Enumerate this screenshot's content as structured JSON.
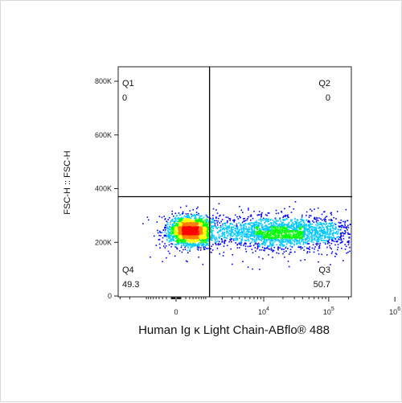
{
  "chart_data": {
    "type": "scatter",
    "subtype": "flow-cytometry-density-dot-plot",
    "xlabel": "Human Ig κ Light Chain-ABflo® 488",
    "ylabel": "FSC-H :: FSC-H",
    "x_scale": "biexponential",
    "x_ticks": [
      {
        "label": "0",
        "value": 0
      },
      {
        "label": "10^4",
        "value": 10000
      },
      {
        "label": "10^5",
        "value": 100000
      },
      {
        "label": "10^6",
        "value": 1000000
      }
    ],
    "y_ticks": [
      {
        "label": "0",
        "value": 0
      },
      {
        "label": "200K",
        "value": 200000
      },
      {
        "label": "400K",
        "value": 400000
      },
      {
        "label": "600K",
        "value": 600000
      },
      {
        "label": "800K",
        "value": 800000
      }
    ],
    "ylim": [
      0,
      860000
    ],
    "gate": {
      "x": 1100,
      "y": 370000
    },
    "quadrants": [
      {
        "name": "Q1",
        "value": "0",
        "position": "top-left"
      },
      {
        "name": "Q2",
        "value": "0",
        "position": "top-right"
      },
      {
        "name": "Q3",
        "value": "50.7",
        "position": "bottom-right"
      },
      {
        "name": "Q4",
        "value": "49.3",
        "position": "bottom-left"
      }
    ],
    "populations": [
      {
        "x_center": 300,
        "x_spread_log": 0.35,
        "y_center": 245000,
        "y_sd": 28000,
        "share": 0.493
      },
      {
        "x_center": 20000,
        "x_spread_log": 1.1,
        "y_center": 240000,
        "y_sd": 30000,
        "share": 0.507
      }
    ],
    "colors": {
      "axis": "#222222",
      "gate": "#000000",
      "density": [
        "#0000ff",
        "#00c8ff",
        "#00ff00",
        "#ffff00",
        "#ff7f00",
        "#ff0000"
      ]
    },
    "grid": false,
    "legend": "none"
  }
}
